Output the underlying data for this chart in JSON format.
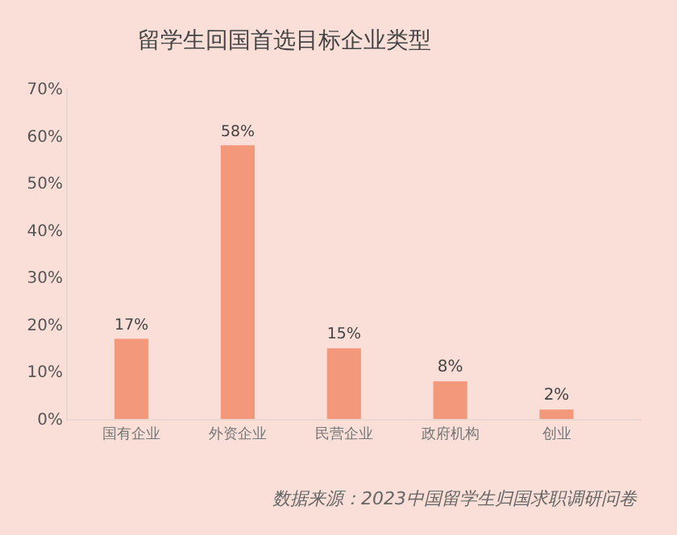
{
  "chart_data": {
    "type": "bar",
    "title": "留学生回国首选目标企业类型",
    "categories": [
      "国有企业",
      "外资企业",
      "民营企业",
      "政府机构",
      "创业"
    ],
    "values": [
      17,
      58,
      15,
      8,
      2
    ],
    "value_labels": [
      "17%",
      "58%",
      "15%",
      "8%",
      "2%"
    ],
    "color": "#f4987c",
    "ylim": [
      0,
      70
    ],
    "yticks": [
      {
        "value": 0,
        "label": "0%"
      },
      {
        "value": 10,
        "label": "10%"
      },
      {
        "value": 20,
        "label": "20%"
      },
      {
        "value": 30,
        "label": "30%"
      },
      {
        "value": 40,
        "label": "40%"
      },
      {
        "value": 50,
        "label": "50%"
      },
      {
        "value": 60,
        "label": "60%"
      },
      {
        "value": 70,
        "label": "70%"
      }
    ],
    "grid": false,
    "annotations": [
      "数据来源：2023中国留学生归国求职调研问卷"
    ]
  }
}
